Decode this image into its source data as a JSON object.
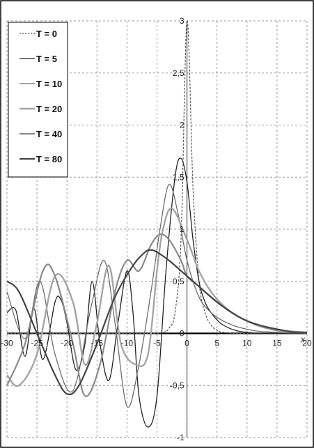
{
  "chart_data": {
    "type": "line",
    "xlabel": "x",
    "ylabel": "",
    "xlim": [
      -30,
      20
    ],
    "ylim": [
      -1,
      3
    ],
    "x_ticks": [
      "-30",
      "-25",
      "-20",
      "-15",
      "-10",
      "-5",
      "0",
      "5",
      "10",
      "15",
      "20"
    ],
    "y_ticks": [
      "3",
      "2,5",
      "2",
      "1,5",
      "1",
      "0,5",
      "0",
      "-0,5",
      "-1"
    ],
    "grid": true,
    "legend_position": "top-left",
    "series": [
      {
        "name": "T = 0",
        "color": "#555555",
        "style": "dotted",
        "x": [
          -30,
          -10,
          -6,
          -4,
          -3,
          -2,
          -1,
          0,
          1,
          2,
          3,
          4,
          5,
          6,
          8,
          10,
          15,
          20
        ],
        "y": [
          0,
          0,
          0,
          0.01,
          0.05,
          0.2,
          0.9,
          3.0,
          1.4,
          0.5,
          0.2,
          0.08,
          0.03,
          0.01,
          0,
          0,
          0,
          0
        ]
      },
      {
        "name": "T = 5",
        "color": "#222222",
        "style": "solid",
        "x": [
          -30,
          -28.5,
          -27,
          -25.5,
          -24,
          -22,
          -21,
          -20,
          -18.5,
          -17,
          -15.8,
          -14.5,
          -13,
          -11.5,
          -10,
          -9,
          -8,
          -6.5,
          -5,
          -3.5,
          -2,
          -1,
          0,
          1,
          2,
          3,
          4,
          5,
          6,
          8,
          10,
          12,
          15,
          20
        ],
        "y": [
          0.2,
          0.22,
          -0.22,
          0.24,
          -0.25,
          0.3,
          0.32,
          0.1,
          -0.35,
          -0.1,
          0.5,
          -0.1,
          -0.45,
          0.1,
          0.6,
          0.2,
          -0.6,
          -0.9,
          -0.6,
          0.6,
          1.5,
          1.68,
          1.45,
          0.9,
          0.5,
          0.3,
          0.2,
          0.13,
          0.08,
          0.03,
          0.01,
          0,
          0,
          0
        ]
      },
      {
        "name": "T = 10",
        "color": "#6e6e6e",
        "style": "solid",
        "x": [
          -30,
          -27,
          -24.5,
          -22,
          -19,
          -16,
          -13.8,
          -12,
          -10,
          -8,
          -6,
          -4.5,
          -3,
          -1.5,
          0,
          2,
          4,
          6,
          8,
          10,
          12,
          15,
          20
        ],
        "y": [
          0.4,
          -0.05,
          0.5,
          -0.2,
          -0.55,
          0.25,
          0.7,
          0.1,
          -0.7,
          -0.3,
          0.4,
          1.0,
          1.43,
          1.15,
          0.7,
          0.35,
          0.2,
          0.12,
          0.07,
          0.04,
          0.02,
          0.01,
          0
        ]
      },
      {
        "name": "T = 20",
        "color": "#a5a5a5",
        "style": "solid",
        "x": [
          -30,
          -28,
          -25,
          -22,
          -19,
          -17,
          -15,
          -13,
          -11,
          -8.5,
          -6.5,
          -5,
          -4,
          -2.5,
          0,
          2,
          4,
          6,
          8,
          10,
          12,
          15,
          20
        ],
        "y": [
          -0.4,
          -0.5,
          -0.2,
          0.55,
          0.3,
          -0.3,
          0.1,
          0.65,
          -0.1,
          -0.3,
          -0.2,
          0.6,
          1.0,
          1.2,
          0.9,
          0.6,
          0.4,
          0.27,
          0.18,
          0.12,
          0.07,
          0.03,
          0.01
        ]
      },
      {
        "name": "T = 40",
        "color": "#8a8a8a",
        "style": "solid",
        "x": [
          -30,
          -27,
          -24,
          -22,
          -19,
          -17,
          -14.5,
          -12,
          -10,
          -8,
          -6,
          -4.5,
          -3,
          -1,
          0,
          2,
          4,
          6,
          8,
          10,
          12,
          15,
          20
        ],
        "y": [
          -0.5,
          -0.1,
          0.6,
          0.55,
          -0.1,
          -0.6,
          -0.3,
          0.4,
          0.7,
          0.6,
          0.85,
          0.95,
          0.9,
          0.7,
          0.55,
          0.45,
          0.35,
          0.26,
          0.18,
          0.12,
          0.08,
          0.03,
          0.01
        ]
      },
      {
        "name": "T = 80",
        "color": "#444444",
        "style": "solid",
        "x": [
          -30,
          -28,
          -25,
          -22,
          -20,
          -18,
          -15,
          -12,
          -9,
          -7,
          -6,
          -5,
          -3,
          -1,
          0,
          2,
          5,
          8,
          10,
          12,
          15,
          18,
          20
        ],
        "y": [
          0.5,
          0.4,
          0.0,
          -0.4,
          -0.58,
          -0.5,
          -0.1,
          0.35,
          0.65,
          0.78,
          0.8,
          0.78,
          0.7,
          0.6,
          0.55,
          0.45,
          0.3,
          0.18,
          0.12,
          0.08,
          0.04,
          0.01,
          0.005
        ]
      }
    ]
  }
}
